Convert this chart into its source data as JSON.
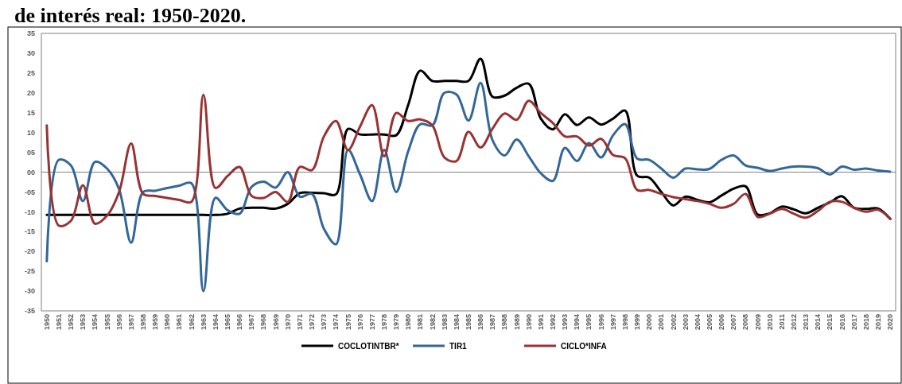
{
  "chart_data": {
    "type": "line",
    "title": "de interés real: 1950-2020.",
    "categories": [
      "1950",
      "1951",
      "1952",
      "1953",
      "1954",
      "1955",
      "1956",
      "1957",
      "1958",
      "1959",
      "1960",
      "1961",
      "1962",
      "1963",
      "1964",
      "1965",
      "1966",
      "1967",
      "1968",
      "1969",
      "1970",
      "1971",
      "1972",
      "1973",
      "1974",
      "1975",
      "1976",
      "1977",
      "1978",
      "1979",
      "1980",
      "1981",
      "1982",
      "1983",
      "1984",
      "1985",
      "1986",
      "1987",
      "1988",
      "1989",
      "1990",
      "1991",
      "1992",
      "1993",
      "1994",
      "1995",
      "1996",
      "1997",
      "1998",
      "1999",
      "2000",
      "2001",
      "2002",
      "2003",
      "2004",
      "2005",
      "2006",
      "2007",
      "2008",
      "2009",
      "2010",
      "2011",
      "2012",
      "2013",
      "2014",
      "2015",
      "2016",
      "2017",
      "2018",
      "2019",
      "2020"
    ],
    "series": [
      {
        "name": "COCLOTINTBR*",
        "color": "#000000",
        "values": [
          -10.8,
          -10.8,
          -10.8,
          -10.8,
          -10.8,
          -10.8,
          -10.8,
          -10.8,
          -10.8,
          -10.8,
          -10.8,
          -10.8,
          -10.8,
          -10.8,
          -10.8,
          -10.5,
          -9.2,
          -9,
          -9,
          -9.2,
          -8,
          -5.3,
          -5.2,
          -5.3,
          -5.6,
          10.9,
          9.5,
          9.5,
          9.5,
          9.3,
          17,
          25.6,
          23,
          23,
          23,
          23,
          28.6,
          19,
          19.3,
          21.3,
          22.3,
          13.5,
          10.8,
          14.6,
          11.9,
          13.8,
          12,
          13.5,
          15.5,
          -0.9,
          -1.4,
          -5,
          -8.4,
          -6.2,
          -7,
          -7.6,
          -5.9,
          -4.2,
          -3.6,
          -10.7,
          -10.4,
          -8.7,
          -9.4,
          -10.4,
          -9,
          -7.6,
          -6.1,
          -9,
          -9.3,
          -9.2,
          -11.8
        ]
      },
      {
        "name": "TIR1",
        "color": "#336699",
        "values": [
          -22.5,
          3.1,
          1.7,
          -7.3,
          2.6,
          0.9,
          -4.3,
          -17.8,
          -5,
          -4.7,
          -4,
          -3.4,
          -2.8,
          -30,
          -6.5,
          -9.6,
          -10.5,
          -3.7,
          -2.4,
          -3.9,
          0,
          -6.2,
          -5.5,
          -14.3,
          -18.2,
          5.6,
          -0.6,
          -7.3,
          5.6,
          -5,
          5.3,
          12.1,
          11.8,
          20,
          19.6,
          13,
          22.5,
          8,
          4.2,
          8.2,
          4,
          -0.3,
          -2.2,
          6.1,
          2.8,
          7.3,
          3.7,
          9.3,
          12.1,
          3.4,
          3.1,
          0.9,
          -1.4,
          0.9,
          0.7,
          0.8,
          3.1,
          4.2,
          1.7,
          1.1,
          0.3,
          0.9,
          1.4,
          1.4,
          1,
          -0.6,
          1.4,
          0.6,
          0.9,
          0.4,
          0.1
        ]
      },
      {
        "name": "CICLO*INFA",
        "color": "#993333",
        "values": [
          11.8,
          -13.5,
          -12.3,
          -3.3,
          -13,
          -11,
          -5,
          7.2,
          -5.5,
          -6,
          -6.5,
          -7,
          -7.5,
          19.5,
          -4,
          -1,
          1.3,
          -6,
          -6.5,
          -5,
          -7.5,
          1.3,
          0.5,
          9,
          12.9,
          5.6,
          11.5,
          16.9,
          4,
          14.9,
          12.9,
          13.3,
          11.8,
          3.7,
          2.8,
          10.2,
          6.2,
          11,
          14.8,
          13.2,
          18,
          14.9,
          12.4,
          9,
          9,
          6.7,
          8.4,
          4.3,
          3.5,
          -4.5,
          -4.5,
          -5.5,
          -6.3,
          -6.8,
          -7.3,
          -8,
          -9,
          -8,
          -5.5,
          -11.3,
          -10.5,
          -9.3,
          -10.5,
          -11.5,
          -9.8,
          -7.5,
          -7.5,
          -9,
          -10,
          -9.5,
          -11.8
        ]
      }
    ],
    "ylim": [
      -35,
      35
    ],
    "yticks": [
      -35,
      -30,
      -25,
      -20,
      -15,
      -10,
      {
        "value": -5,
        "label": "-05"
      },
      {
        "value": 0,
        "label": "00"
      },
      {
        "value": 5,
        "label": "05"
      },
      10,
      15,
      20,
      25,
      30,
      35
    ],
    "legend": "bottom"
  }
}
